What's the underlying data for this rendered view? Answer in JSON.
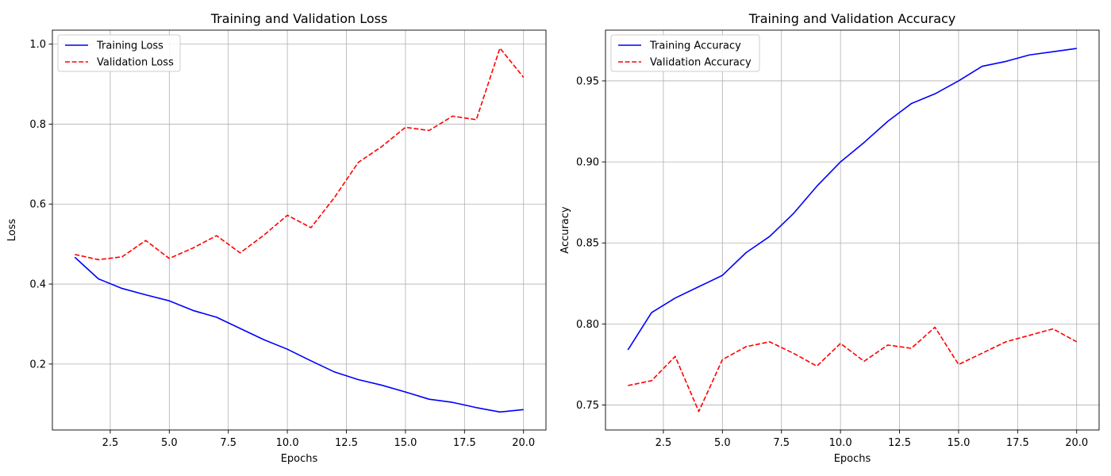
{
  "chart_data": [
    {
      "type": "line",
      "title": "Training and Validation Loss",
      "xlabel": "Epochs",
      "ylabel": "Loss",
      "xlim": [
        0.05,
        20.95
      ],
      "ylim": [
        0.035,
        1.035
      ],
      "xticks": [
        2.5,
        5.0,
        7.5,
        10.0,
        12.5,
        15.0,
        17.5,
        20.0
      ],
      "xtick_labels": [
        "2.5",
        "5.0",
        "7.5",
        "10.0",
        "12.5",
        "15.0",
        "17.5",
        "20.0"
      ],
      "yticks": [
        0.2,
        0.4,
        0.6,
        0.8,
        1.0
      ],
      "ytick_labels": [
        "0.2",
        "0.4",
        "0.6",
        "0.8",
        "1.0"
      ],
      "grid": true,
      "legend_position": "upper-left",
      "x": [
        1,
        2,
        3,
        4,
        5,
        6,
        7,
        8,
        9,
        10,
        11,
        12,
        13,
        14,
        15,
        16,
        17,
        18,
        19,
        20
      ],
      "series": [
        {
          "name": "Training Loss",
          "color": "#0000ff",
          "style": "solid",
          "values": [
            0.467,
            0.413,
            0.389,
            0.373,
            0.358,
            0.334,
            0.317,
            0.289,
            0.261,
            0.237,
            0.208,
            0.18,
            0.161,
            0.147,
            0.13,
            0.112,
            0.104,
            0.091,
            0.08,
            0.086
          ]
        },
        {
          "name": "Validation Loss",
          "color": "#ff0000",
          "style": "dashed",
          "values": [
            0.474,
            0.461,
            0.468,
            0.509,
            0.464,
            0.49,
            0.521,
            0.478,
            0.522,
            0.572,
            0.541,
            0.617,
            0.704,
            0.744,
            0.792,
            0.784,
            0.82,
            0.811,
            0.99,
            0.917
          ]
        }
      ]
    },
    {
      "type": "line",
      "title": "Training and Validation Accuracy",
      "xlabel": "Epochs",
      "ylabel": "Accuracy",
      "xlim": [
        0.05,
        20.95
      ],
      "ylim": [
        0.7346,
        0.9813
      ],
      "xticks": [
        2.5,
        5.0,
        7.5,
        10.0,
        12.5,
        15.0,
        17.5,
        20.0
      ],
      "xtick_labels": [
        "2.5",
        "5.0",
        "7.5",
        "10.0",
        "12.5",
        "15.0",
        "17.5",
        "20.0"
      ],
      "yticks": [
        0.75,
        0.8,
        0.85,
        0.9,
        0.95
      ],
      "ytick_labels": [
        "0.75",
        "0.80",
        "0.85",
        "0.90",
        "0.95"
      ],
      "grid": true,
      "legend_position": "upper-left",
      "x": [
        1,
        2,
        3,
        4,
        5,
        6,
        7,
        8,
        9,
        10,
        11,
        12,
        13,
        14,
        15,
        16,
        17,
        18,
        19,
        20
      ],
      "series": [
        {
          "name": "Training Accuracy",
          "color": "#0000ff",
          "style": "solid",
          "values": [
            0.784,
            0.807,
            0.816,
            0.823,
            0.83,
            0.844,
            0.854,
            0.868,
            0.885,
            0.9,
            0.912,
            0.925,
            0.936,
            0.942,
            0.95,
            0.959,
            0.962,
            0.966,
            0.968,
            0.97
          ]
        },
        {
          "name": "Validation Accuracy",
          "color": "#ff0000",
          "style": "dashed",
          "values": [
            0.762,
            0.765,
            0.78,
            0.746,
            0.778,
            0.786,
            0.789,
            0.782,
            0.774,
            0.788,
            0.777,
            0.787,
            0.785,
            0.798,
            0.775,
            0.782,
            0.789,
            0.793,
            0.797,
            0.789
          ]
        }
      ]
    }
  ]
}
